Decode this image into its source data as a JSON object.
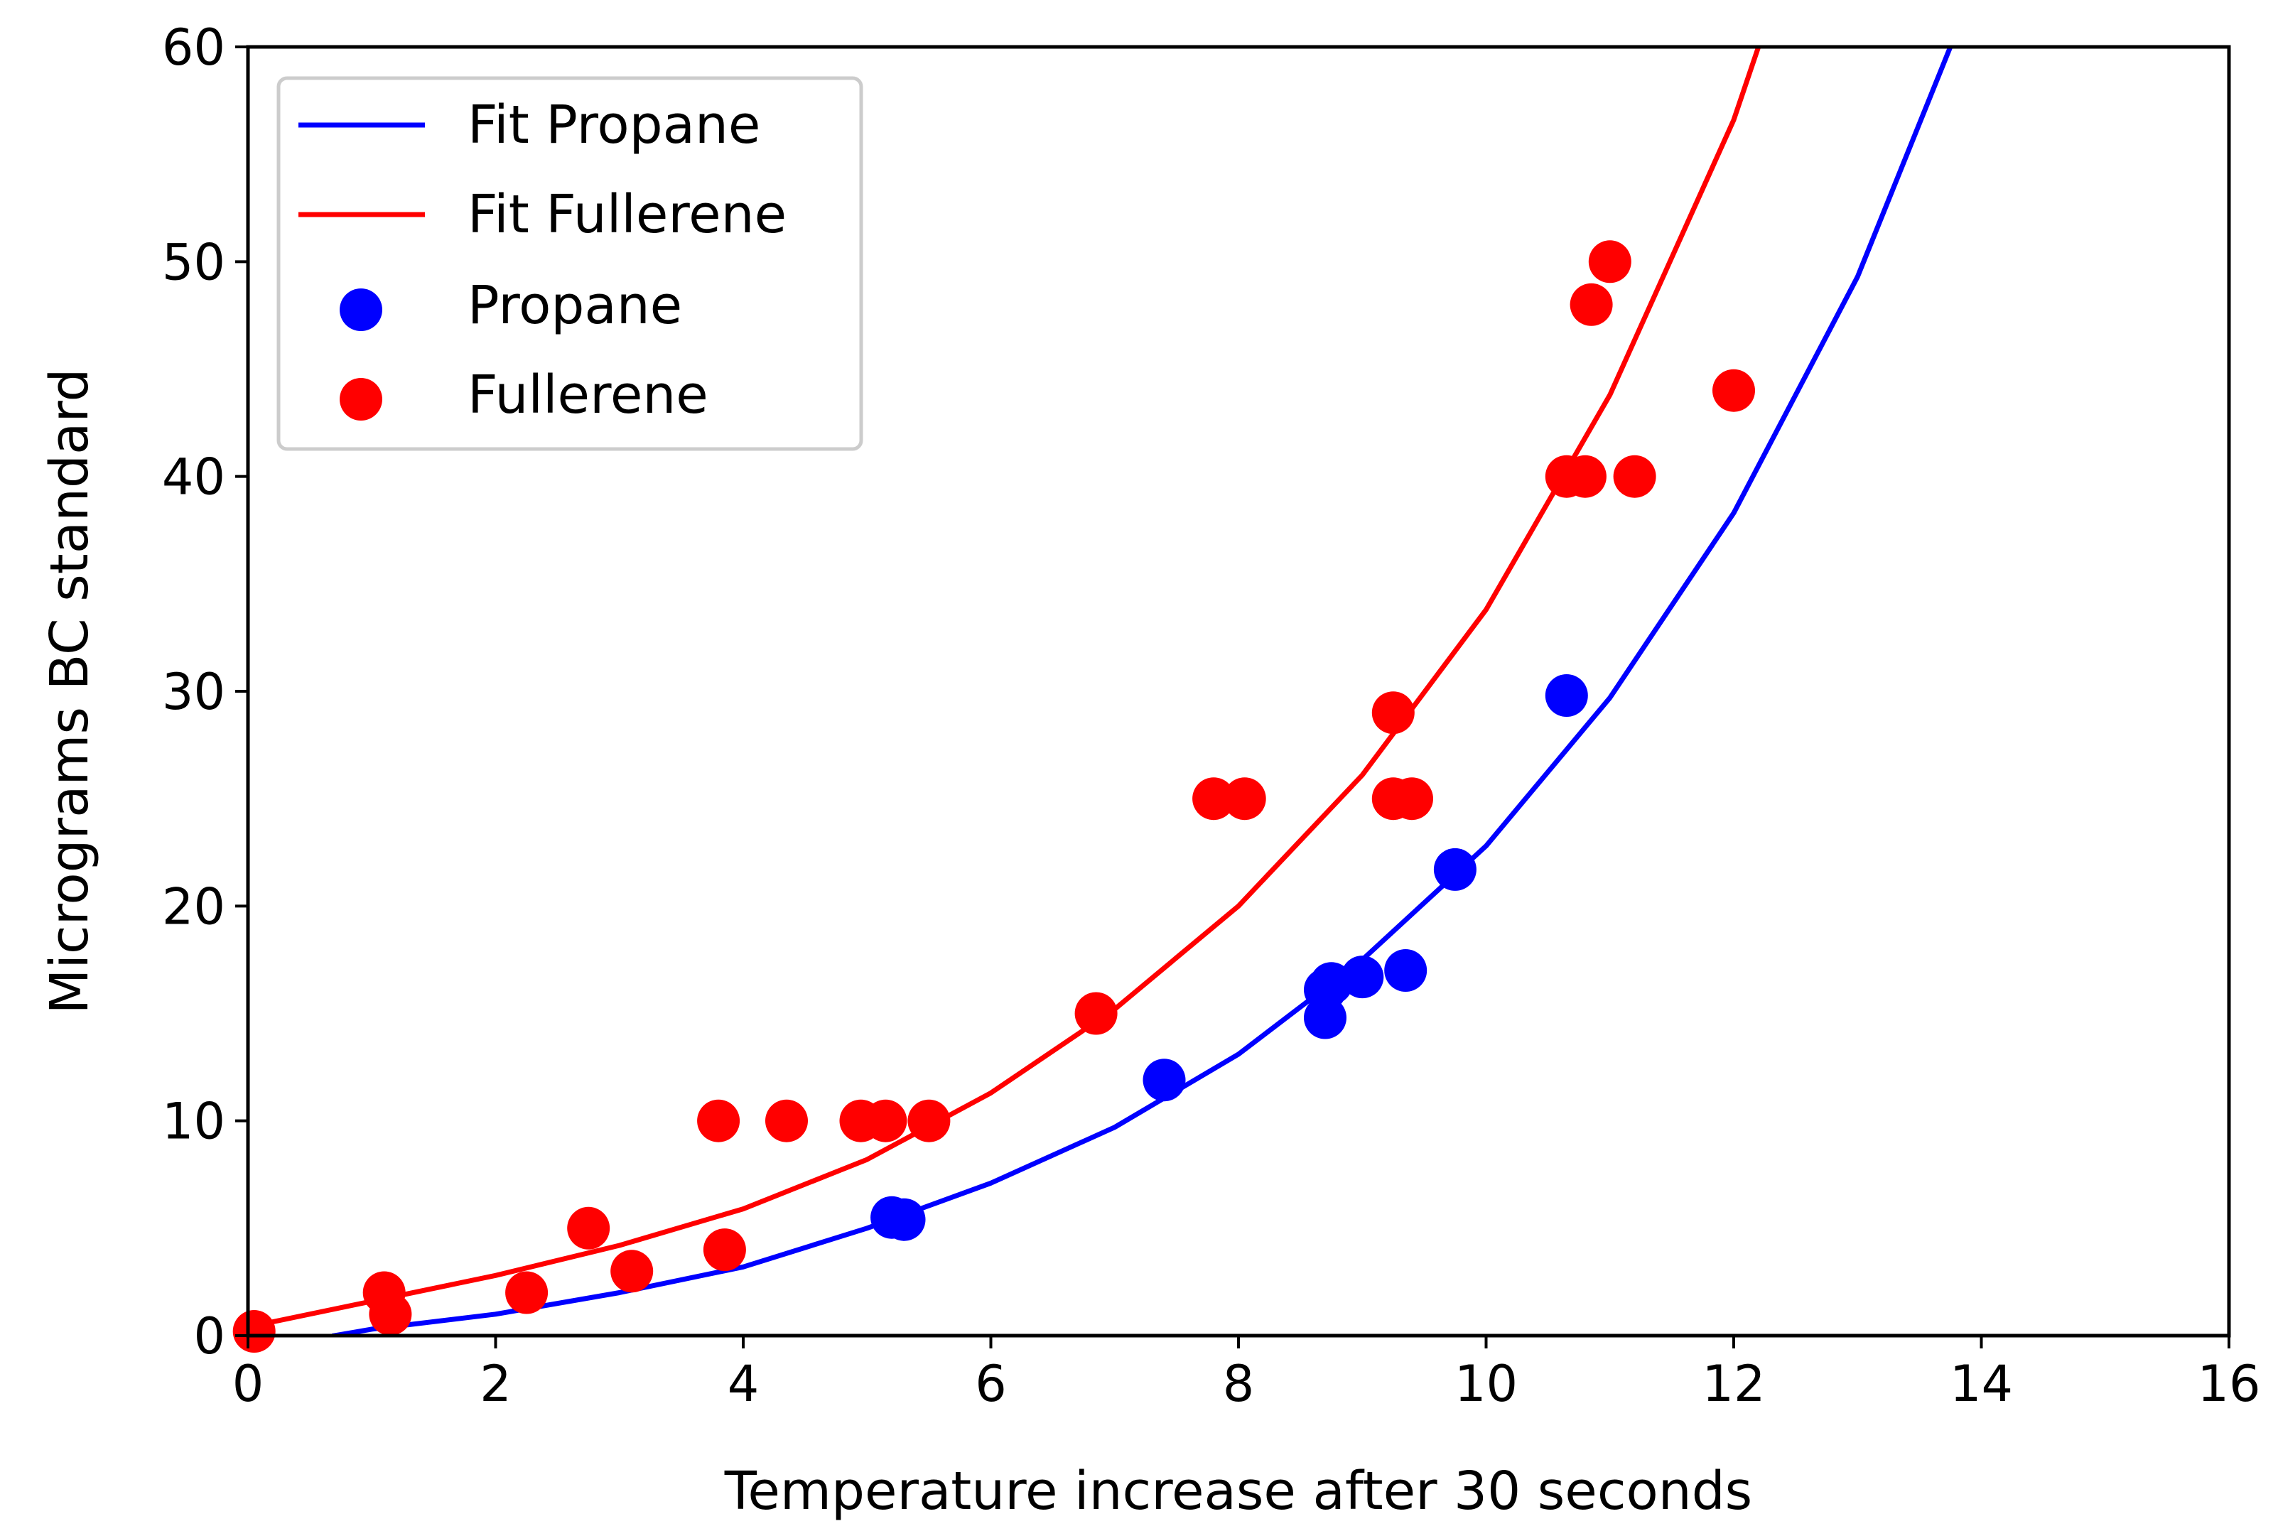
{
  "chart_data": {
    "type": "scatter",
    "title": "",
    "xlabel": "Temperature increase after 30 seconds",
    "ylabel": "Micrograms BC standard",
    "xlim": [
      0,
      16
    ],
    "ylim": [
      0,
      60
    ],
    "xticks": [
      0,
      2,
      4,
      6,
      8,
      10,
      12,
      14,
      16
    ],
    "yticks": [
      0,
      10,
      20,
      30,
      40,
      50,
      60
    ],
    "grid": false,
    "legend_position": "top-left",
    "series": [
      {
        "name": "Fit Propane",
        "kind": "line",
        "color": "#0000ff",
        "x": [
          0.7,
          1.0,
          2.0,
          3.0,
          4.0,
          5.0,
          6.0,
          7.0,
          8.0,
          9.0,
          10.0,
          11.0,
          12.0,
          13.0,
          13.75
        ],
        "y": [
          0,
          0.3,
          1.0,
          2.0,
          3.2,
          5.0,
          7.1,
          9.7,
          13.1,
          17.5,
          22.8,
          29.7,
          38.3,
          49.3,
          60
        ]
      },
      {
        "name": "Fit Fullerene",
        "kind": "line",
        "color": "#ff0000",
        "x": [
          0.0,
          1.0,
          2.0,
          3.0,
          4.0,
          5.0,
          6.0,
          7.0,
          8.0,
          9.0,
          10.0,
          11.0,
          12.0,
          12.2
        ],
        "y": [
          0.4,
          1.6,
          2.8,
          4.2,
          5.9,
          8.2,
          11.3,
          15.2,
          20.0,
          26.1,
          33.8,
          43.8,
          56.6,
          60
        ]
      },
      {
        "name": "Propane",
        "kind": "scatter",
        "color": "#0000ff",
        "x": [
          5.2,
          5.3,
          7.4,
          8.7,
          8.75,
          8.7,
          9.0,
          9.35,
          9.75,
          10.65
        ],
        "y": [
          5.5,
          5.4,
          11.9,
          16.1,
          16.4,
          14.8,
          16.7,
          17.0,
          21.7,
          29.8
        ]
      },
      {
        "name": "Fullerene",
        "kind": "scatter",
        "color": "#ff0000",
        "x": [
          0.05,
          1.1,
          1.15,
          2.25,
          2.75,
          3.1,
          3.8,
          3.85,
          4.35,
          4.95,
          5.15,
          5.5,
          6.85,
          7.8,
          8.05,
          9.25,
          9.25,
          9.4,
          10.65,
          10.8,
          10.85,
          11.0,
          11.2,
          12.0
        ],
        "y": [
          0.2,
          2.0,
          1.0,
          2.0,
          5.0,
          3.0,
          10.0,
          4.0,
          10.0,
          10.0,
          10.0,
          10.0,
          15.0,
          25.0,
          25.0,
          29.0,
          25.0,
          25.0,
          40.0,
          40.0,
          48.0,
          50.0,
          40.0,
          44.0
        ]
      }
    ]
  }
}
